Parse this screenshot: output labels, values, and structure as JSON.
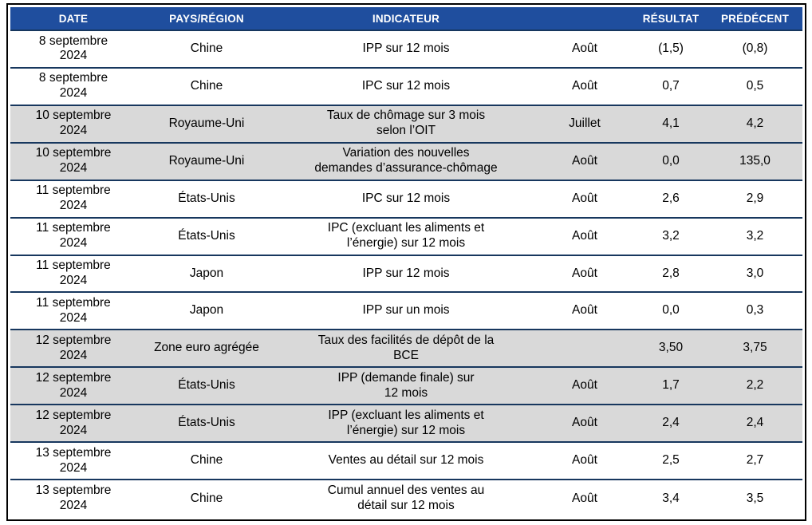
{
  "table": {
    "colors": {
      "header_bg": "#1F4E9E",
      "header_text": "#FFFFFF",
      "row_separator": "#17375E",
      "shaded_row_bg": "#D9D9D9",
      "outer_border": "#000000"
    },
    "columns": [
      {
        "label": "DATE"
      },
      {
        "label": "PAYS/RÉGION"
      },
      {
        "label": "INDICATEUR"
      },
      {
        "label": ""
      },
      {
        "label": "RÉSULTAT"
      },
      {
        "label": "PRÉDÉCENT"
      }
    ],
    "rows": [
      {
        "date": "8 septembre\n2024",
        "region": "Chine",
        "indicator": "IPP sur 12 mois",
        "period": "Août",
        "result": "(1,5)",
        "previous": "(0,8)",
        "shaded": false
      },
      {
        "date": "8 septembre\n2024",
        "region": "Chine",
        "indicator": "IPC sur 12 mois",
        "period": "Août",
        "result": "0,7",
        "previous": "0,5",
        "shaded": false
      },
      {
        "date": "10 septembre\n2024",
        "region": "Royaume-Uni",
        "indicator": "Taux de chômage sur 3 mois\nselon l’OIT",
        "period": "Juillet",
        "result": "4,1",
        "previous": "4,2",
        "shaded": true
      },
      {
        "date": "10 septembre\n2024",
        "region": "Royaume-Uni",
        "indicator": "Variation des nouvelles\ndemandes d’assurance-chômage",
        "period": "Août",
        "result": "0,0",
        "previous": "135,0",
        "shaded": true
      },
      {
        "date": "11 septembre\n2024",
        "region": "États-Unis",
        "indicator": "IPC sur 12 mois",
        "period": "Août",
        "result": "2,6",
        "previous": "2,9",
        "shaded": false
      },
      {
        "date": "11 septembre\n2024",
        "region": "États-Unis",
        "indicator": "IPC (excluant les aliments et\nl’énergie) sur 12 mois",
        "period": "Août",
        "result": "3,2",
        "previous": "3,2",
        "shaded": false
      },
      {
        "date": "11 septembre\n2024",
        "region": "Japon",
        "indicator": "IPP sur 12 mois",
        "period": "Août",
        "result": "2,8",
        "previous": "3,0",
        "shaded": false
      },
      {
        "date": "11 septembre\n2024",
        "region": "Japon",
        "indicator": "IPP sur un mois",
        "period": "Août",
        "result": "0,0",
        "previous": "0,3",
        "shaded": false
      },
      {
        "date": "12 septembre\n2024",
        "region": "Zone euro agrégée",
        "indicator": "Taux des facilités de dépôt de la\nBCE",
        "period": "",
        "result": "3,50",
        "previous": "3,75",
        "shaded": true
      },
      {
        "date": "12 septembre\n2024",
        "region": "États-Unis",
        "indicator": "IPP (demande finale) sur\n12 mois",
        "period": "Août",
        "result": "1,7",
        "previous": "2,2",
        "shaded": true
      },
      {
        "date": "12 septembre\n2024",
        "region": "États-Unis",
        "indicator": "IPP (excluant les aliments et\nl’énergie) sur 12 mois",
        "period": "Août",
        "result": "2,4",
        "previous": "2,4",
        "shaded": true
      },
      {
        "date": "13 septembre\n2024",
        "region": "Chine",
        "indicator": "Ventes au détail sur 12 mois",
        "period": "Août",
        "result": "2,5",
        "previous": "2,7",
        "shaded": false
      },
      {
        "date": "13 septembre\n2024",
        "region": "Chine",
        "indicator": "Cumul annuel des ventes au\ndétail sur 12 mois",
        "period": "Août",
        "result": "3,4",
        "previous": "3,5",
        "shaded": false
      }
    ]
  }
}
